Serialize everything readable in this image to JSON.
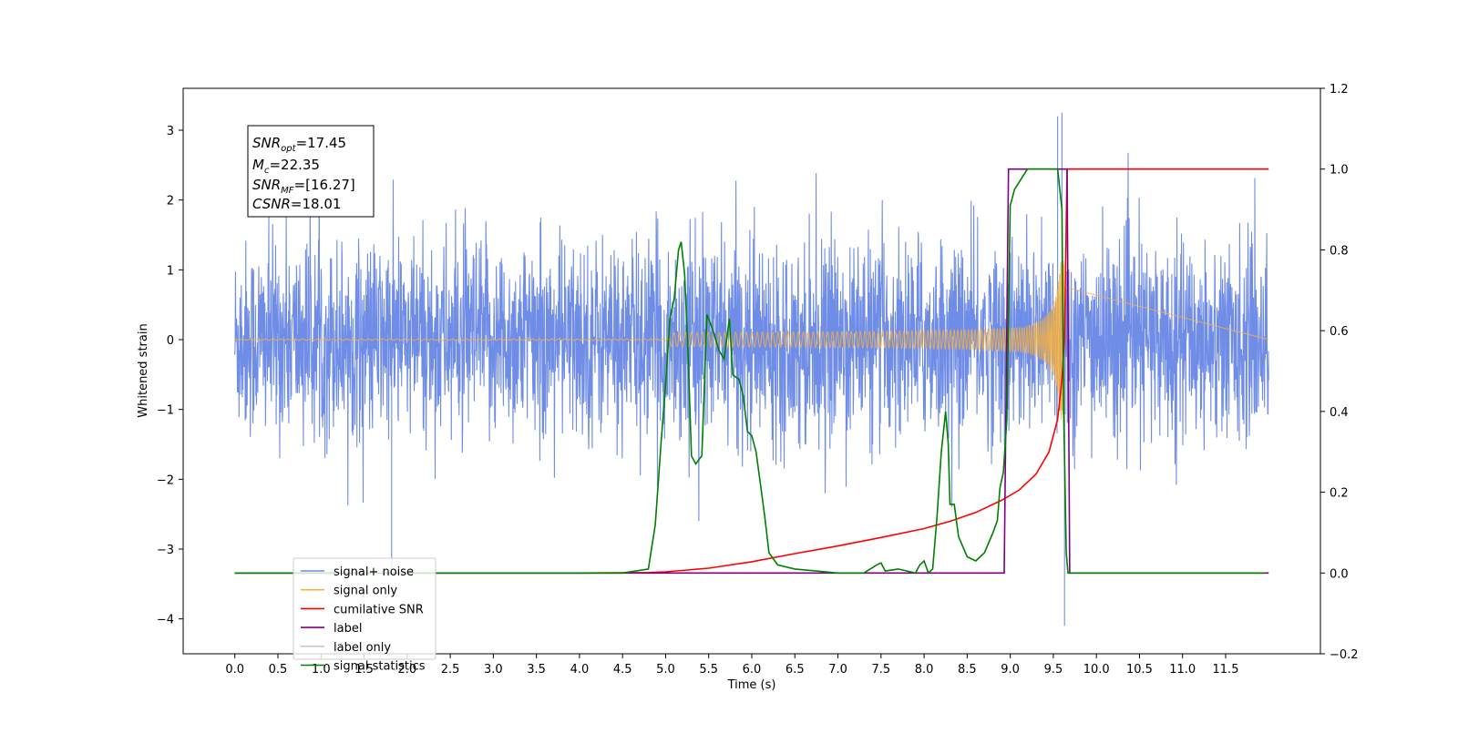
{
  "chart_data": {
    "type": "line",
    "xlabel": "Time (s)",
    "ylabel": "Whitened strain",
    "xlim": [
      -0.6,
      12.6
    ],
    "ylim_left": [
      -4.5,
      3.6
    ],
    "ylim_right": [
      -0.2,
      1.2
    ],
    "x_ticks": [
      "0.0",
      "0.5",
      "1.0",
      "1.5",
      "2.0",
      "2.5",
      "3.0",
      "3.5",
      "4.0",
      "4.5",
      "5.0",
      "5.5",
      "6.0",
      "6.5",
      "7.0",
      "7.5",
      "8.0",
      "8.5",
      "9.0",
      "9.5",
      "10.0",
      "10.5",
      "11.0",
      "11.5"
    ],
    "y_ticks_left": [
      "3",
      "2",
      "1",
      "0",
      "−1",
      "−2",
      "−3",
      "−4"
    ],
    "y_ticks_right": [
      "1.2",
      "1.0",
      "0.8",
      "0.6",
      "0.4",
      "0.2",
      "0.0",
      "−0.2"
    ],
    "grid": false,
    "legend_position": "lower-left",
    "series": [
      {
        "name": "signal+ noise",
        "color": "#6f8de6",
        "axis": "left",
        "kind": "noise",
        "duration": 12.0,
        "amplitude_std": 0.7,
        "spike_max": 3.25,
        "spike_min": -4.1
      },
      {
        "name": "signal only",
        "color": "#f5b041",
        "axis": "left",
        "kind": "chirp",
        "merger_time": 9.63,
        "peak_amplitude": 1.15
      },
      {
        "name": "cumilative SNR",
        "color": "#ff0000",
        "axis": "right",
        "x": [
          0,
          2,
          4,
          4.8,
          5.0,
          5.5,
          6.0,
          6.5,
          7.0,
          7.5,
          8.0,
          8.3,
          8.6,
          8.9,
          9.1,
          9.3,
          9.45,
          9.55,
          9.6,
          9.63,
          9.66,
          10,
          11,
          12
        ],
        "y": [
          0,
          0,
          0,
          0.001,
          0.003,
          0.012,
          0.028,
          0.048,
          0.067,
          0.088,
          0.11,
          0.128,
          0.15,
          0.18,
          0.205,
          0.245,
          0.3,
          0.38,
          0.48,
          0.58,
          1.0,
          1.0,
          1.0,
          1.0
        ]
      },
      {
        "name": "label",
        "color": "#800080",
        "axis": "right",
        "x": [
          0,
          8.93,
          8.98,
          9.66,
          9.69,
          12
        ],
        "y": [
          0,
          0,
          1,
          1,
          0,
          0
        ]
      },
      {
        "name": "label only",
        "color": "#c9c9c9",
        "axis": "right",
        "x": [],
        "y": []
      },
      {
        "name": "signal statistics",
        "color": "#008000",
        "axis": "right",
        "x": [
          0,
          2,
          3,
          4,
          4.5,
          4.8,
          4.88,
          4.95,
          5.0,
          5.05,
          5.1,
          5.15,
          5.18,
          5.22,
          5.26,
          5.3,
          5.35,
          5.42,
          5.48,
          5.55,
          5.62,
          5.68,
          5.74,
          5.78,
          5.85,
          5.9,
          5.95,
          6.0,
          6.05,
          6.1,
          6.15,
          6.2,
          6.3,
          6.5,
          7.0,
          7.3,
          7.45,
          7.5,
          7.55,
          7.7,
          7.9,
          7.95,
          8.0,
          8.05,
          8.1,
          8.15,
          8.2,
          8.25,
          8.28,
          8.3,
          8.35,
          8.4,
          8.5,
          8.6,
          8.7,
          8.8,
          8.85,
          8.88,
          8.92,
          8.96,
          9.0,
          9.05,
          9.2,
          9.4,
          9.55,
          9.6,
          9.62,
          9.65,
          9.67,
          9.7,
          10,
          11,
          11.95
        ],
        "y": [
          0,
          0,
          0,
          0,
          0,
          0.01,
          0.12,
          0.33,
          0.47,
          0.63,
          0.68,
          0.8,
          0.82,
          0.74,
          0.55,
          0.29,
          0.27,
          0.29,
          0.64,
          0.6,
          0.55,
          0.53,
          0.63,
          0.49,
          0.48,
          0.44,
          0.35,
          0.34,
          0.3,
          0.22,
          0.14,
          0.05,
          0.02,
          0.01,
          0.0,
          0.0,
          0.02,
          0.025,
          0.005,
          0.01,
          0.0,
          0.02,
          0.03,
          0.0,
          0.01,
          0.14,
          0.3,
          0.4,
          0.32,
          0.17,
          0.17,
          0.09,
          0.04,
          0.03,
          0.05,
          0.1,
          0.13,
          0.21,
          0.25,
          0.38,
          0.91,
          0.95,
          1.0,
          1.0,
          1.0,
          0.9,
          0.4,
          0.05,
          0.0,
          0.0,
          0.0,
          0.0,
          0.0
        ]
      }
    ]
  },
  "stats_box": {
    "snr_opt": {
      "label": "SNR",
      "sub": "opt",
      "value": "=17.45"
    },
    "mc": {
      "label": "M",
      "sub": "c",
      "value": "=22.35"
    },
    "snr_mf": {
      "label": "SNR",
      "sub": "MF",
      "value": "=[16.27]"
    },
    "csnr": {
      "label": "CSNR",
      "value": "=18.01"
    }
  },
  "legend": [
    {
      "label": "signal+ noise",
      "color": "#6f8de6"
    },
    {
      "label": "signal only",
      "color": "#f5b041"
    },
    {
      "label": "cumilative SNR",
      "color": "#ff0000"
    },
    {
      "label": "label",
      "color": "#800080"
    },
    {
      "label": "label only",
      "color": "#c9c9c9"
    },
    {
      "label": "signal statistics",
      "color": "#008000"
    }
  ]
}
